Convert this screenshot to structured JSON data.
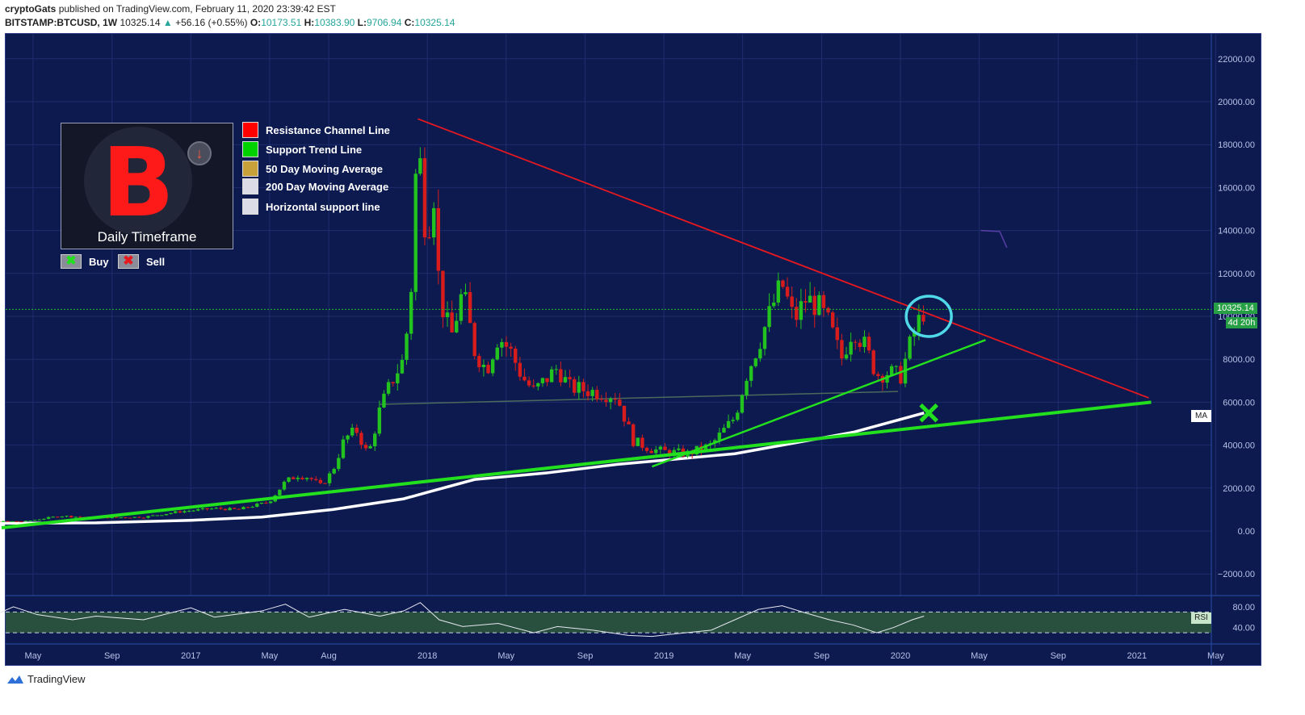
{
  "header": {
    "author": "cryptoGats",
    "published": "published on TradingView.com, February 11, 2020 23:39:42 EST",
    "symbol": "BITSTAMP:BTCUSD, 1W",
    "last": "10325.14",
    "change": "+56.16 (+0.55%)",
    "o_label": "O:",
    "o": "10173.51",
    "h_label": "H:",
    "h": "10383.90",
    "l_label": "L:",
    "l": "9706.94",
    "c_label": "C:",
    "c": "10325.14"
  },
  "colors": {
    "background": "#0d1a4f",
    "resistance": "#e8181f",
    "support": "#22e01e",
    "ma200": "#ffffff",
    "candle_up": "#22c31e",
    "candle_down": "#d81c1c",
    "circle": "#4fd8e8"
  },
  "logo": {
    "caption": "Daily Timeframe",
    "icon": "bitcoin-icon",
    "arrow_icon": "down-arrow-icon"
  },
  "legend": [
    {
      "label": "Resistance Channel Line",
      "color": "#ff0000"
    },
    {
      "label": "Support Trend Line",
      "color": "#00d200"
    },
    {
      "label": "50 Day Moving Average",
      "color": "#c9a13a"
    },
    {
      "label": "200 Day Moving Average",
      "color": "#dcdce6"
    },
    {
      "label": "Horizontal support line",
      "color": "#dcdce6"
    }
  ],
  "buy_sell": {
    "buy": "Buy",
    "sell": "Sell",
    "buy_symbol": "✖",
    "sell_symbol": "✖"
  },
  "tags": {
    "price": "10325.14",
    "countdown": "4d 20h",
    "ma": "MA",
    "rsi": "RSI"
  },
  "footer": {
    "brand": "TradingView"
  },
  "chart_data": {
    "type": "candlestick",
    "y_ticks": [
      22000,
      20000,
      18000,
      16000,
      14000,
      12000,
      10000,
      8000,
      6000,
      4000,
      2000,
      0,
      -2000
    ],
    "y_tick_labels": [
      "22000.00",
      "20000.00",
      "18000.00",
      "16000.00",
      "14000.00",
      "12000.00",
      "10000.00",
      "8000.00",
      "6000.00",
      "4000.00",
      "2000.00",
      "0.00",
      "−2000.00"
    ],
    "ylim": [
      -3000,
      23000
    ],
    "x_ticks": [
      "May",
      "Sep",
      "2017",
      "May",
      "Aug",
      "2018",
      "May",
      "Sep",
      "2019",
      "May",
      "Sep",
      "2020",
      "May",
      "Sep",
      "2021",
      "May"
    ],
    "x_tick_years": [
      2016.333,
      2016.667,
      2017.0,
      2017.333,
      2017.583,
      2018.0,
      2018.333,
      2018.667,
      2019.0,
      2019.333,
      2019.667,
      2020.0,
      2020.333,
      2020.667,
      2021.0,
      2021.333
    ],
    "current_price": 10325.14,
    "price_path": [
      [
        2016.0,
        430
      ],
      [
        2016.3,
        450
      ],
      [
        2016.45,
        700
      ],
      [
        2016.6,
        620
      ],
      [
        2016.8,
        650
      ],
      [
        2016.95,
        900
      ],
      [
        2017.1,
        1050
      ],
      [
        2017.2,
        1000
      ],
      [
        2017.33,
        1350
      ],
      [
        2017.4,
        2300
      ],
      [
        2017.45,
        2600
      ],
      [
        2017.5,
        2500
      ],
      [
        2017.55,
        2100
      ],
      [
        2017.6,
        2800
      ],
      [
        2017.65,
        4300
      ],
      [
        2017.7,
        4700
      ],
      [
        2017.75,
        3500
      ],
      [
        2017.8,
        5700
      ],
      [
        2017.85,
        7000
      ],
      [
        2017.9,
        8000
      ],
      [
        2017.93,
        11000
      ],
      [
        2017.96,
        19000
      ],
      [
        2017.98,
        15000
      ],
      [
        2018.0,
        14000
      ],
      [
        2018.03,
        16000
      ],
      [
        2018.05,
        11000
      ],
      [
        2018.1,
        9000
      ],
      [
        2018.15,
        11200
      ],
      [
        2018.2,
        8400
      ],
      [
        2018.25,
        7500
      ],
      [
        2018.3,
        9100
      ],
      [
        2018.35,
        8400
      ],
      [
        2018.4,
        7200
      ],
      [
        2018.45,
        6500
      ],
      [
        2018.55,
        7600
      ],
      [
        2018.6,
        6700
      ],
      [
        2018.7,
        6500
      ],
      [
        2018.8,
        6300
      ],
      [
        2018.87,
        4200
      ],
      [
        2018.95,
        3800
      ],
      [
        2019.0,
        3700
      ],
      [
        2019.1,
        3600
      ],
      [
        2019.2,
        4000
      ],
      [
        2019.3,
        5300
      ],
      [
        2019.35,
        7300
      ],
      [
        2019.4,
        8700
      ],
      [
        2019.47,
        10800
      ],
      [
        2019.5,
        11500
      ],
      [
        2019.55,
        9800
      ],
      [
        2019.6,
        10800
      ],
      [
        2019.65,
        10500
      ],
      [
        2019.7,
        9600
      ],
      [
        2019.75,
        8000
      ],
      [
        2019.8,
        9500
      ],
      [
        2019.85,
        8600
      ],
      [
        2019.9,
        7300
      ],
      [
        2019.95,
        7400
      ],
      [
        2020.0,
        7200
      ],
      [
        2020.03,
        8300
      ],
      [
        2020.06,
        9300
      ],
      [
        2020.1,
        10325
      ]
    ],
    "ma200": [
      [
        2016.0,
        350
      ],
      [
        2016.6,
        380
      ],
      [
        2017.0,
        500
      ],
      [
        2017.3,
        650
      ],
      [
        2017.6,
        1000
      ],
      [
        2017.9,
        1500
      ],
      [
        2018.0,
        1800
      ],
      [
        2018.2,
        2400
      ],
      [
        2018.5,
        2700
      ],
      [
        2018.8,
        3100
      ],
      [
        2019.0,
        3300
      ],
      [
        2019.3,
        3600
      ],
      [
        2019.5,
        4000
      ],
      [
        2019.8,
        4600
      ],
      [
        2020.1,
        5500
      ]
    ],
    "trendlines": {
      "resistance": [
        [
          2017.96,
          19200
        ],
        [
          2021.05,
          6200
        ]
      ],
      "support_long": [
        [
          2016.2,
          150
        ],
        [
          2021.06,
          6000
        ]
      ],
      "support_short": [
        [
          2018.95,
          3000
        ],
        [
          2020.36,
          8900
        ]
      ],
      "horizontal_support": [
        [
          2017.8,
          5900
        ],
        [
          2019.99,
          6500
        ]
      ]
    },
    "rsi_ticks": [
      80,
      40
    ],
    "rsi_tick_labels": [
      "80.00",
      "40.00"
    ],
    "rsi_band": [
      70,
      30
    ],
    "rsi": [
      [
        2016.0,
        50
      ],
      [
        2016.1,
        55
      ],
      [
        2016.15,
        60
      ],
      [
        2016.25,
        80
      ],
      [
        2016.35,
        65
      ],
      [
        2016.5,
        55
      ],
      [
        2016.6,
        62
      ],
      [
        2016.8,
        55
      ],
      [
        2017.0,
        78
      ],
      [
        2017.1,
        60
      ],
      [
        2017.3,
        72
      ],
      [
        2017.4,
        85
      ],
      [
        2017.5,
        60
      ],
      [
        2017.65,
        75
      ],
      [
        2017.8,
        62
      ],
      [
        2017.9,
        72
      ],
      [
        2017.97,
        88
      ],
      [
        2018.05,
        55
      ],
      [
        2018.15,
        42
      ],
      [
        2018.3,
        48
      ],
      [
        2018.45,
        30
      ],
      [
        2018.55,
        42
      ],
      [
        2018.7,
        35
      ],
      [
        2018.85,
        25
      ],
      [
        2018.95,
        23
      ],
      [
        2019.05,
        28
      ],
      [
        2019.2,
        35
      ],
      [
        2019.3,
        55
      ],
      [
        2019.4,
        75
      ],
      [
        2019.5,
        82
      ],
      [
        2019.6,
        68
      ],
      [
        2019.7,
        55
      ],
      [
        2019.8,
        45
      ],
      [
        2019.9,
        30
      ],
      [
        2019.97,
        40
      ],
      [
        2020.05,
        55
      ],
      [
        2020.1,
        62
      ]
    ]
  }
}
